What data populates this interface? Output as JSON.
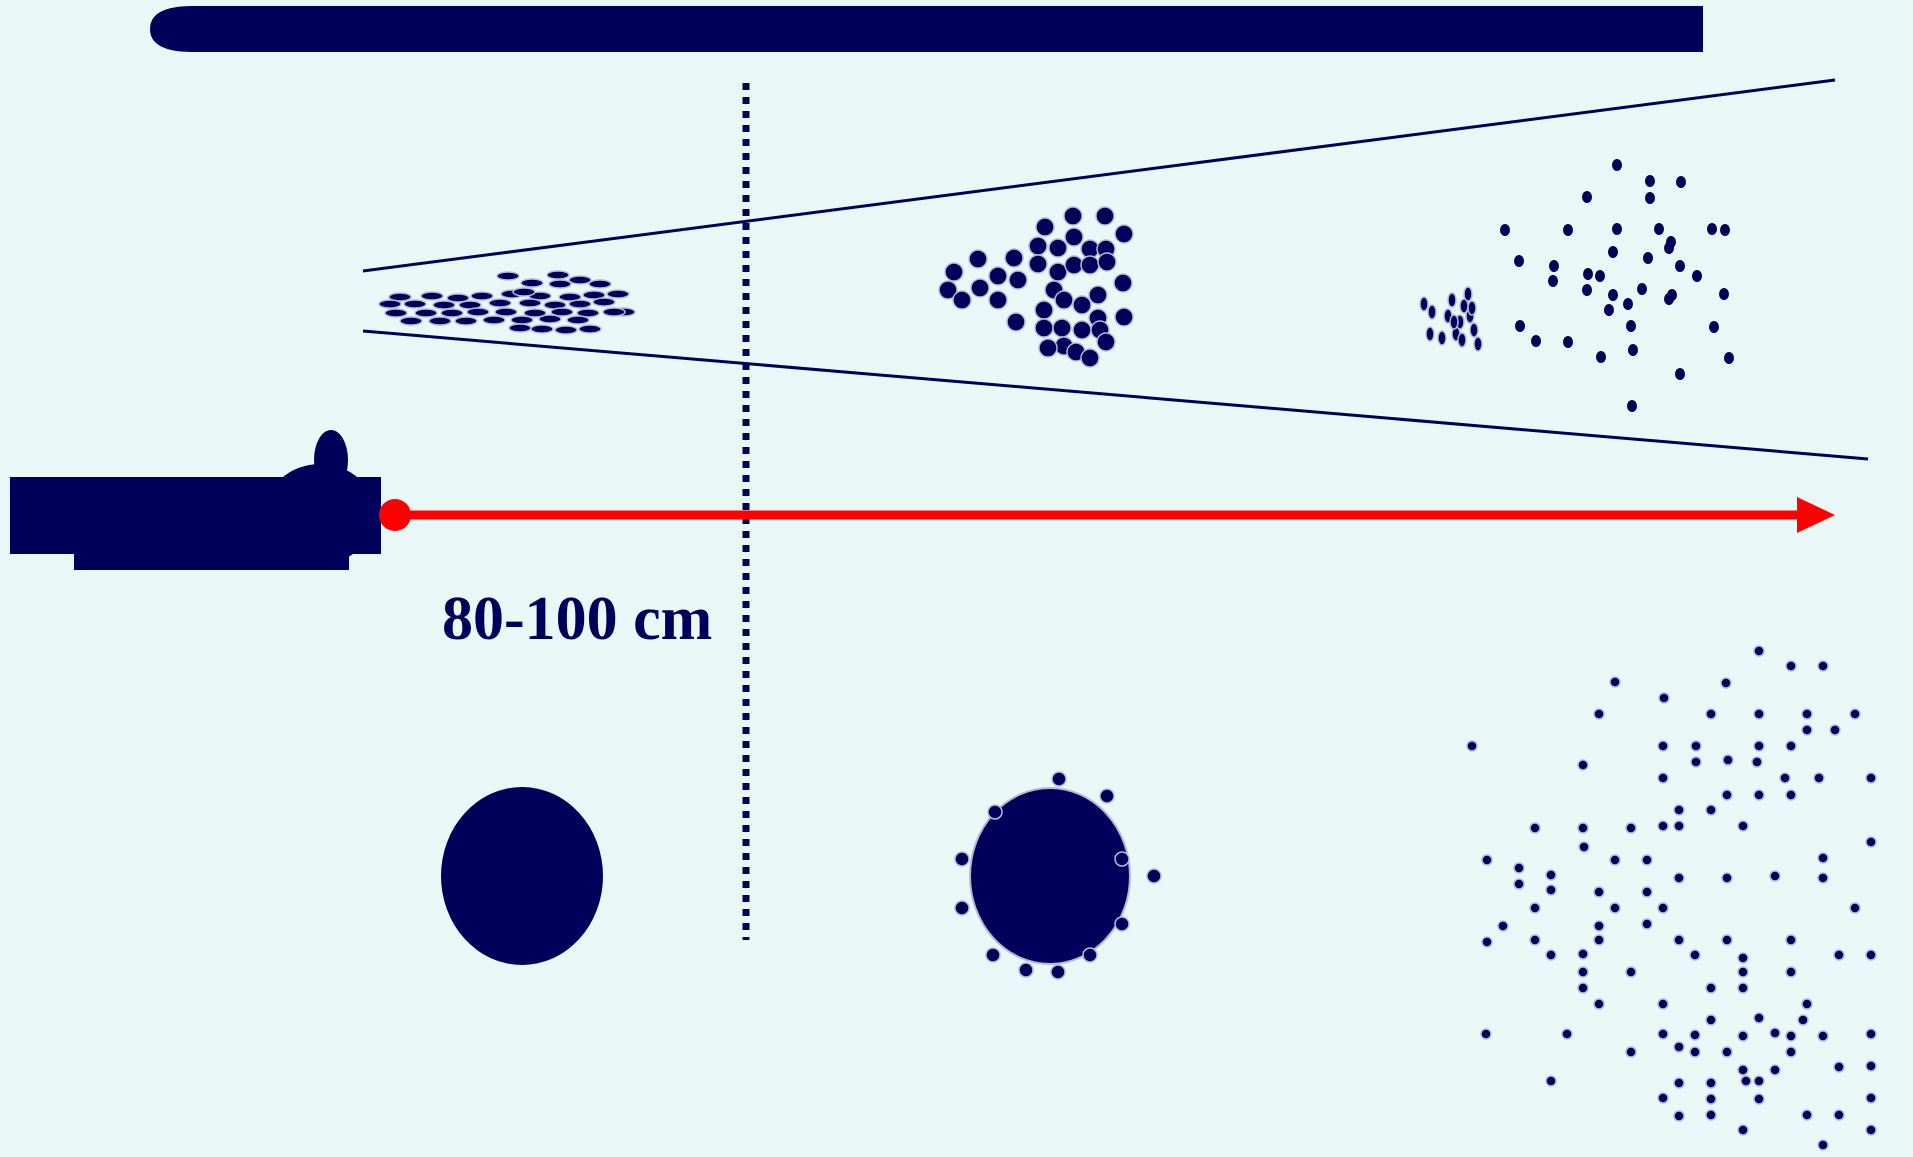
{
  "colors": {
    "background": "#eaf7f7",
    "navy": "#00005a",
    "laser": "#ff0000",
    "pellet_outline": "#b8b8d8"
  },
  "labels": {
    "distance": "80-100 cm"
  },
  "icons": {
    "gun": "shotgun-silhouette-icon",
    "muzzle": "muzzle-point-icon",
    "arrow": "arrow-right-icon"
  },
  "stages": [
    {
      "id": "near",
      "pattern": "tight-wad",
      "entrance": "single-round-hole"
    },
    {
      "id": "middle",
      "pattern": "clustered-shot",
      "entrance": "central-hole-with-satellites"
    },
    {
      "id": "far",
      "pattern": "dispersed-shot",
      "entrance": "scattered-pellet-holes"
    }
  ]
}
